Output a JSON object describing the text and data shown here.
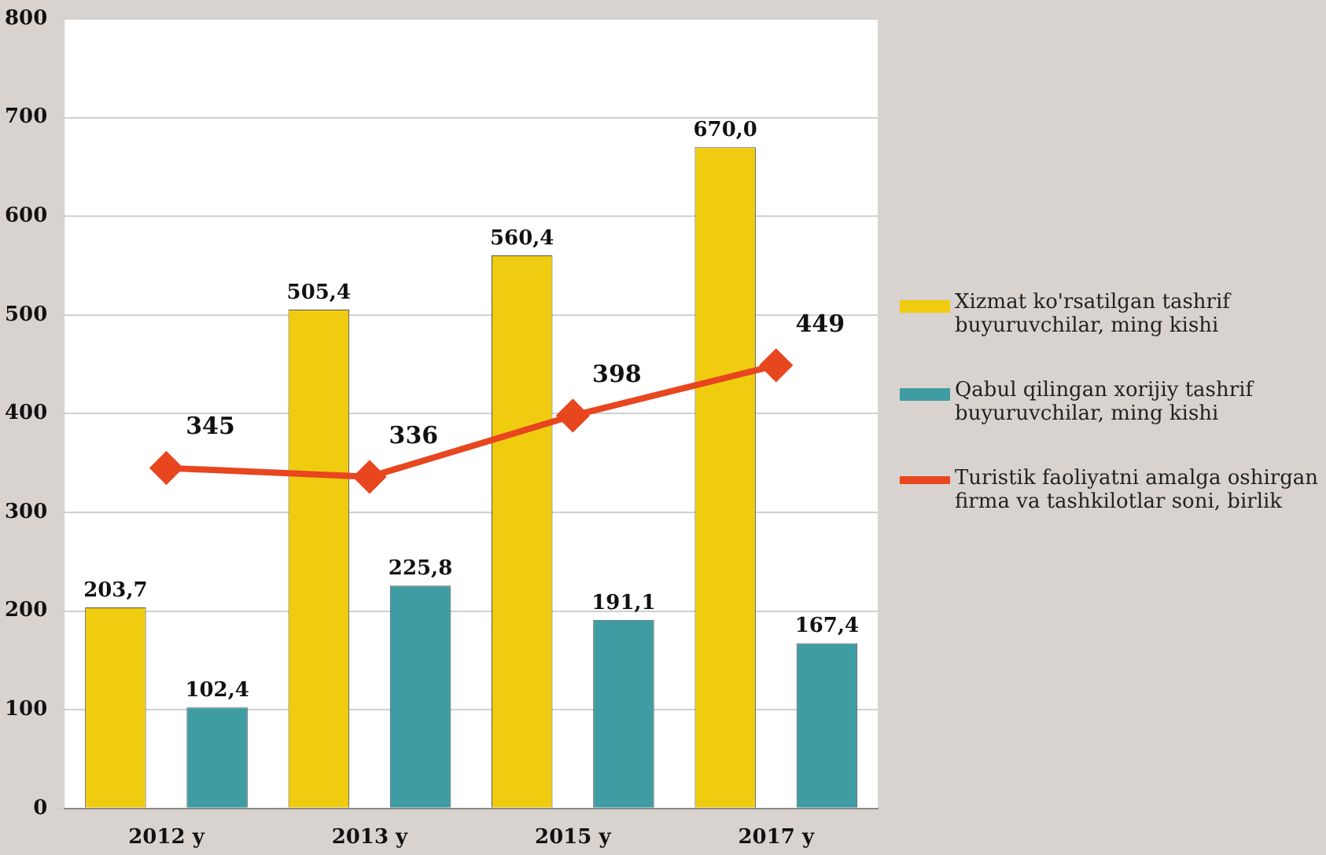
{
  "chart_data": {
    "type": "bar",
    "categories": [
      "2012 y",
      "2013 y",
      "2015 y",
      "2017 y"
    ],
    "series": [
      {
        "name": "Xizmat ko'rsatilgan tashrif buyuruvchilar, ming kishi",
        "color": "#f0cc10",
        "values": [
          203.7,
          505.4,
          560.4,
          670.0
        ],
        "value_labels": [
          "203,7",
          "505,4",
          "560,4",
          "670,0"
        ]
      },
      {
        "name": "Qabul qilingan xorijiy tashrif buyuruvchilar, ming kishi",
        "color": "#3f9ca2",
        "values": [
          102.4,
          225.8,
          191.1,
          167.4
        ],
        "value_labels": [
          "102,4",
          "225,8",
          "191,1",
          "167,4"
        ]
      },
      {
        "name": "Turistik faoliyatni amalga oshirgan firma va tashkilotlar soni, birlik",
        "type": "line",
        "color": "#e8461e",
        "marker": "diamond",
        "values": [
          345,
          336,
          398,
          449
        ],
        "value_labels": [
          "345",
          "336",
          "398",
          "449"
        ]
      }
    ],
    "ylim": [
      0,
      800
    ],
    "yticks": [
      0,
      100,
      200,
      300,
      400,
      500,
      600,
      700,
      800
    ],
    "grid": "y",
    "legend": "right"
  }
}
